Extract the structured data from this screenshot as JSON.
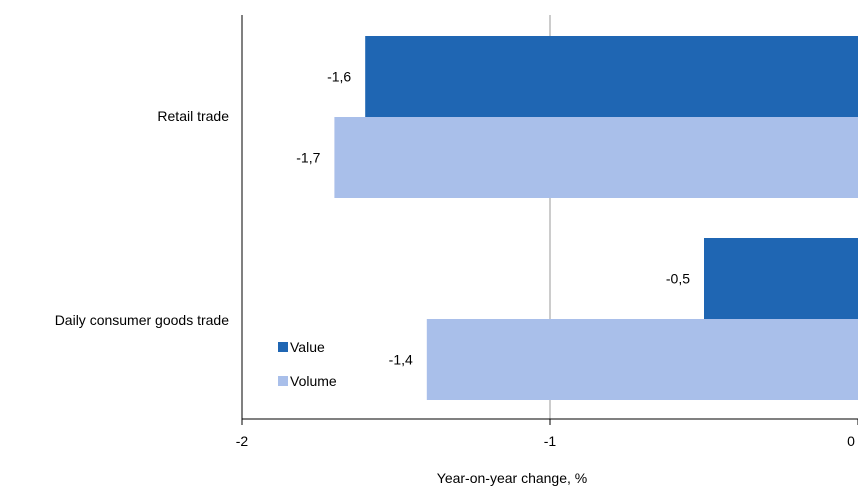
{
  "chart_data": {
    "type": "bar",
    "orientation": "horizontal",
    "categories": [
      "Retail trade",
      "Daily consumer goods trade"
    ],
    "series": [
      {
        "name": "Value",
        "values": [
          -1.6,
          -0.5
        ],
        "labels": [
          "-1,6",
          "-0,5"
        ],
        "color": "#1f66b3"
      },
      {
        "name": "Volume",
        "values": [
          -1.7,
          -1.4
        ],
        "labels": [
          "-1,7",
          "-1,4"
        ],
        "color": "#a9bfea"
      }
    ],
    "xlabel": "Year-on-year change, %",
    "xlim": [
      -2,
      0
    ],
    "xticks": [
      -2,
      -1,
      0
    ],
    "xtick_labels": [
      "-2",
      "-1",
      "0"
    ],
    "grid": "vertical",
    "legend_position": "bottom-left inside plot"
  }
}
